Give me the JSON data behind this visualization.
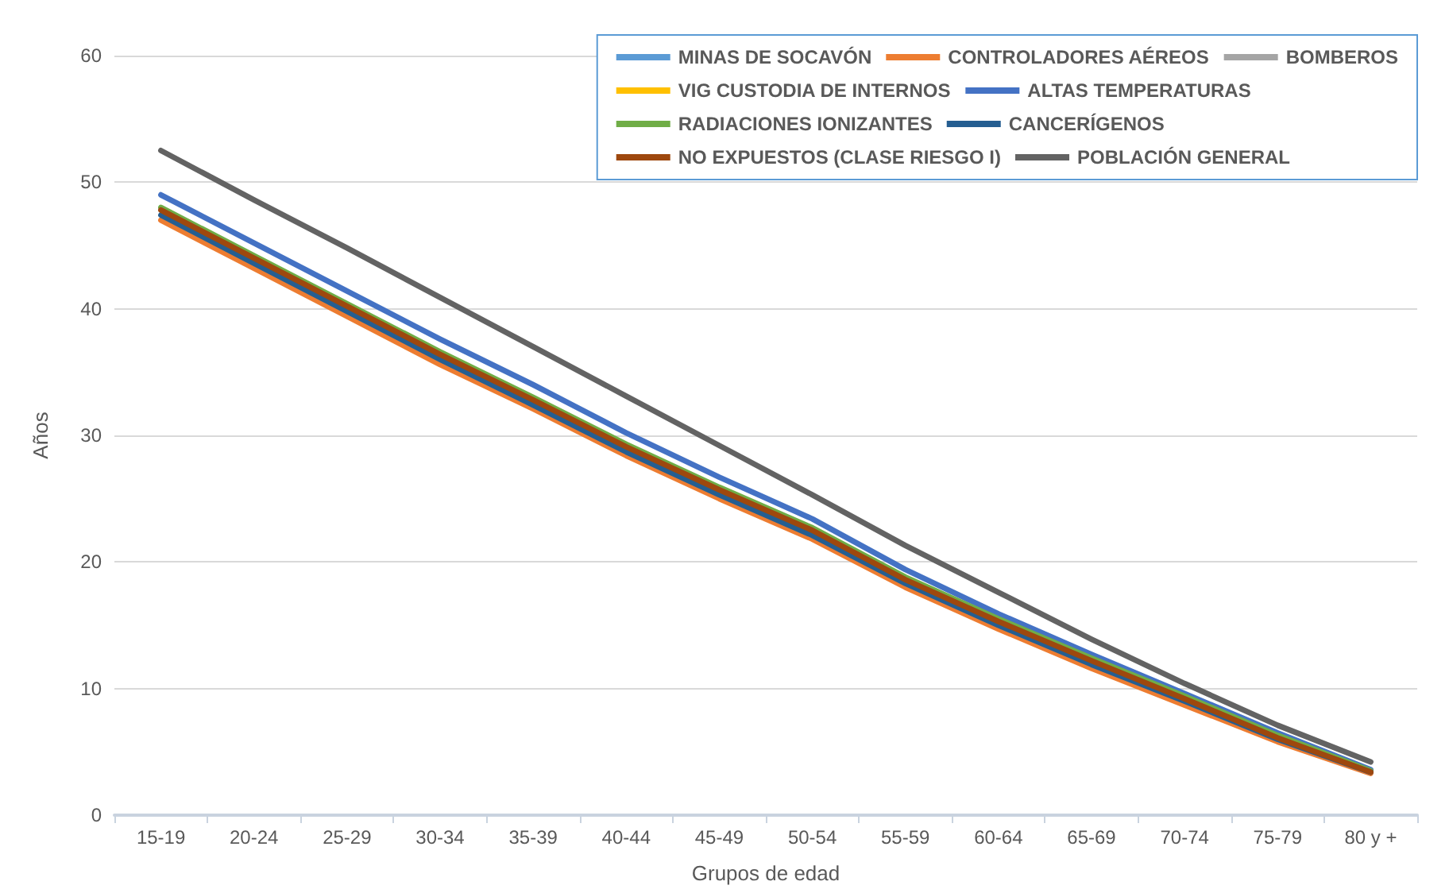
{
  "chart_data": {
    "type": "line",
    "xlabel": "Grupos de edad",
    "ylabel": "Años",
    "categories": [
      "15-19",
      "20-24",
      "25-29",
      "30-34",
      "35-39",
      "40-44",
      "45-49",
      "50-54",
      "55-59",
      "60-64",
      "65-69",
      "70-74",
      "75-79",
      "80 y +"
    ],
    "ylim": [
      0,
      60
    ],
    "yticks": [
      0,
      10,
      20,
      30,
      40,
      50,
      60
    ],
    "grid": "y",
    "legend": "top right",
    "marker": "none",
    "line_style": "solid",
    "series": [
      {
        "name": "MINAS DE SOCAVÓN",
        "color": "#5b9bd5",
        "values": [
          null,
          null,
          null,
          null,
          null,
          null,
          null,
          null,
          null,
          null,
          null,
          null,
          null,
          null
        ]
      },
      {
        "name": "CONTROLADORES AÉREOS",
        "color": "#ed7d31",
        "values": [
          47.0,
          43.2,
          39.4,
          35.6,
          32.1,
          28.4,
          25.0,
          21.8,
          18.0,
          14.7,
          11.6,
          8.7,
          5.8,
          3.3
        ]
      },
      {
        "name": "BOMBEROS",
        "color": "#a5a5a5",
        "values": [
          null,
          null,
          null,
          null,
          null,
          null,
          null,
          null,
          null,
          null,
          null,
          null,
          null,
          null
        ]
      },
      {
        "name": "VIG CUSTODIA DE INTERNOS",
        "color": "#ffc000",
        "values": [
          null,
          null,
          null,
          null,
          null,
          null,
          null,
          null,
          null,
          null,
          null,
          null,
          null,
          null
        ]
      },
      {
        "name": "ALTAS TEMPERATURAS",
        "color": "#4472c4",
        "values": [
          49.0,
          45.2,
          41.4,
          37.6,
          34.0,
          30.2,
          26.7,
          23.4,
          19.4,
          15.9,
          12.7,
          9.6,
          6.5,
          3.6
        ]
      },
      {
        "name": "RADIACIONES IONIZANTES",
        "color": "#70ad47",
        "values": [
          48.0,
          44.2,
          40.4,
          36.6,
          33.0,
          29.3,
          25.9,
          22.7,
          18.8,
          15.5,
          12.4,
          9.4,
          6.3,
          3.5
        ]
      },
      {
        "name": "CANCERÍGENOS",
        "color": "#255e91",
        "values": [
          47.4,
          43.6,
          39.8,
          36.0,
          32.4,
          28.7,
          25.3,
          22.1,
          18.3,
          15.0,
          11.9,
          9.0,
          6.0,
          3.4
        ]
      },
      {
        "name": "NO EXPUESTOS (CLASE RIESGO I)",
        "color": "#9e480e",
        "values": [
          47.8,
          44.0,
          40.2,
          36.4,
          32.8,
          29.1,
          25.7,
          22.5,
          18.6,
          15.3,
          12.2,
          9.2,
          6.1,
          3.4
        ]
      },
      {
        "name": "POBLACIÓN GENERAL",
        "color": "#636363",
        "values": [
          52.5,
          48.6,
          44.8,
          40.9,
          37.0,
          33.1,
          29.2,
          25.3,
          21.3,
          17.6,
          13.9,
          10.4,
          7.1,
          4.2
        ]
      }
    ]
  }
}
